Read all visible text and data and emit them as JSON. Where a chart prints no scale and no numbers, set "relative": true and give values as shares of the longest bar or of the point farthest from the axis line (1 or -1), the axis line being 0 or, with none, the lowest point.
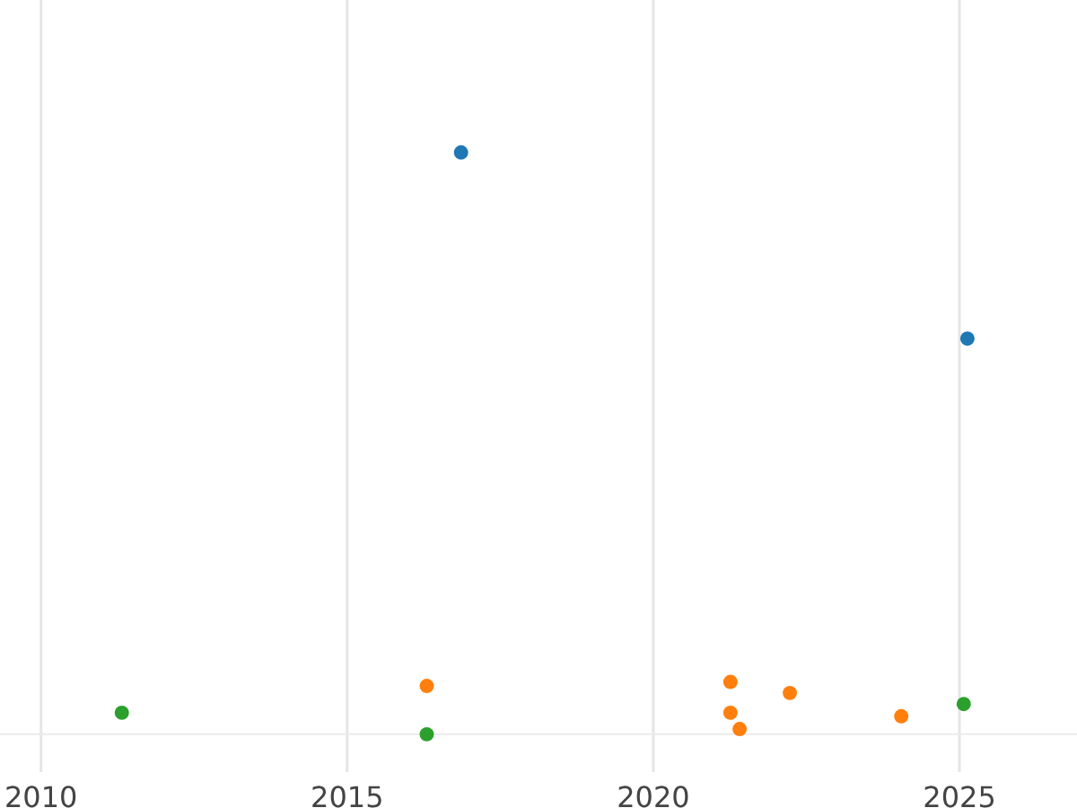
{
  "chart_data": {
    "type": "scatter",
    "relative": true,
    "marker": "circle",
    "grid": "x",
    "xlim": [
      2009.33,
      2026.92
    ],
    "xticks": [
      2010,
      2015,
      2020,
      2025
    ],
    "series": [
      {
        "color": "#1f77b4",
        "x": [
          2016.86,
          2025.13
        ],
        "values": [
          1,
          0.68
        ]
      },
      {
        "color": "#ff7f0e",
        "x": [
          2016.3,
          2021.26,
          2021.26,
          2021.41,
          2022.23,
          2024.05
        ],
        "values": [
          0.083,
          0.09,
          0.037,
          0.009,
          0.071,
          0.031
        ]
      },
      {
        "color": "#2ca02c",
        "x": [
          2011.32,
          2016.3,
          2025.07
        ],
        "values": [
          0.037,
          0,
          0.052
        ]
      }
    ]
  }
}
